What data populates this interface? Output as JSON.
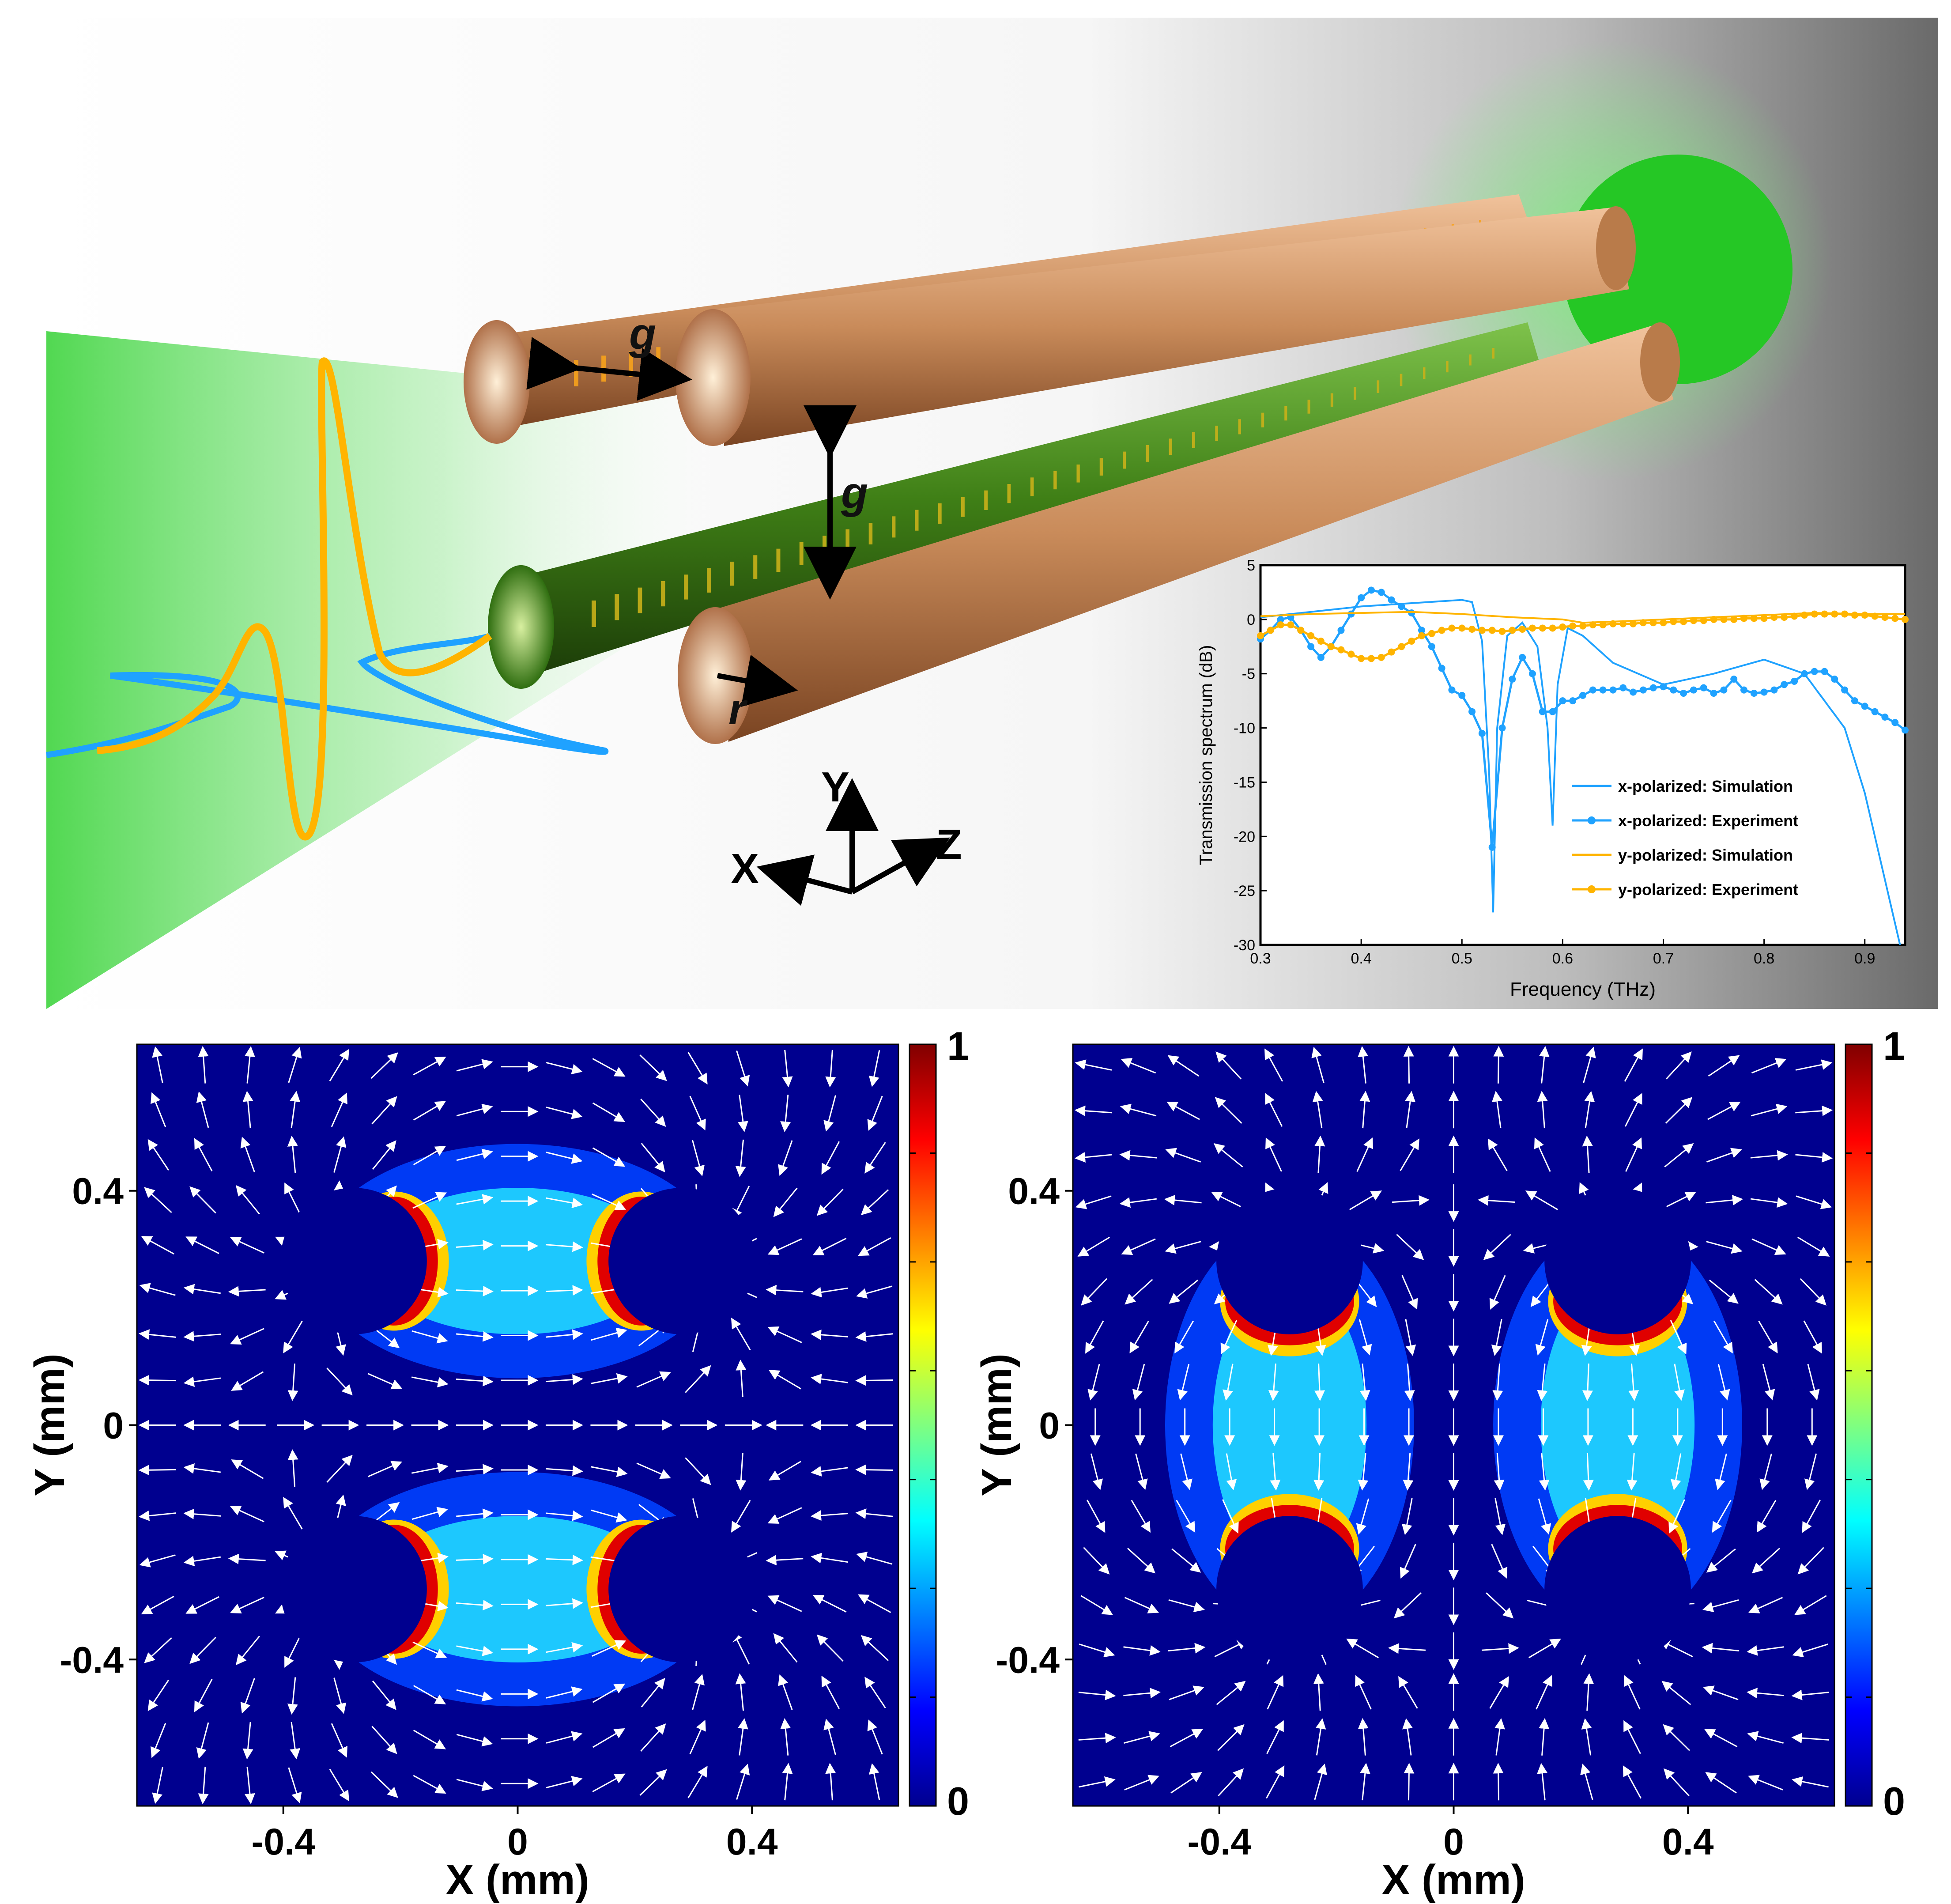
{
  "schematic": {
    "labels": {
      "gap_label_top": "g",
      "gap_label_vertical": "g",
      "radius_label": "r",
      "axis_y": "Y",
      "axis_x": "X",
      "axis_z": "Z"
    },
    "colors": {
      "copper": "#c98b5a",
      "green_wire": "#3f7f16",
      "beam": "#3cd63c",
      "pulse_orange": "#ffb400",
      "pulse_blue": "#1fa2ff"
    }
  },
  "chart_data": [
    {
      "type": "line",
      "title": "",
      "xlabel": "Frequency (THz)",
      "ylabel": "Transmission spectrum (dB)",
      "xlim": [
        0.3,
        0.94
      ],
      "ylim": [
        -30,
        5
      ],
      "xticks": [
        "0.3",
        "0.4",
        "0.5",
        "0.6",
        "0.7",
        "0.8",
        "0.9"
      ],
      "yticks": [
        "5",
        "0",
        "-5",
        "-10",
        "-15",
        "-20",
        "-25",
        "-30"
      ],
      "grid": false,
      "legend_position": "lower-right",
      "series": [
        {
          "name": "x-polarized: Simulation",
          "color": "#1fa2ff",
          "marker": false,
          "x": [
            0.3,
            0.35,
            0.4,
            0.45,
            0.5,
            0.51,
            0.52,
            0.527,
            0.531,
            0.535,
            0.545,
            0.56,
            0.575,
            0.585,
            0.59,
            0.595,
            0.605,
            0.62,
            0.65,
            0.7,
            0.75,
            0.8,
            0.84,
            0.88,
            0.9,
            0.92,
            0.935
          ],
          "y": [
            0.2,
            0.7,
            1.2,
            1.5,
            1.8,
            1.6,
            -2,
            -14,
            -27,
            -10,
            -1.5,
            -0.3,
            -2.5,
            -10,
            -19,
            -6,
            -0.8,
            -1.5,
            -4,
            -6,
            -5,
            -3.7,
            -5,
            -10,
            -16,
            -24,
            -30
          ]
        },
        {
          "name": "x-polarized: Experiment",
          "color": "#1fa2ff",
          "marker": true,
          "x": [
            0.3,
            0.31,
            0.32,
            0.33,
            0.34,
            0.35,
            0.36,
            0.37,
            0.38,
            0.39,
            0.4,
            0.41,
            0.42,
            0.43,
            0.44,
            0.45,
            0.46,
            0.47,
            0.48,
            0.49,
            0.5,
            0.51,
            0.52,
            0.53,
            0.54,
            0.55,
            0.56,
            0.57,
            0.58,
            0.59,
            0.6,
            0.61,
            0.62,
            0.63,
            0.64,
            0.65,
            0.66,
            0.67,
            0.68,
            0.69,
            0.7,
            0.71,
            0.72,
            0.73,
            0.74,
            0.75,
            0.76,
            0.77,
            0.78,
            0.79,
            0.8,
            0.81,
            0.82,
            0.83,
            0.84,
            0.85,
            0.86,
            0.87,
            0.88,
            0.89,
            0.9,
            0.91,
            0.92,
            0.93,
            0.94
          ],
          "y": [
            -1.8,
            -1,
            0,
            0.2,
            -1,
            -2.5,
            -3.5,
            -2.5,
            -1,
            0.5,
            2,
            2.7,
            2.5,
            1.8,
            1.2,
            0.6,
            -1,
            -2.5,
            -4.5,
            -6.5,
            -7,
            -8.5,
            -10.5,
            -21,
            -10,
            -5.5,
            -3.5,
            -5,
            -8.5,
            -8.5,
            -7.5,
            -7.5,
            -7,
            -6.5,
            -6.5,
            -6.5,
            -6.3,
            -6.7,
            -6.5,
            -6.3,
            -6.2,
            -6.5,
            -6.8,
            -6.5,
            -6.3,
            -6.8,
            -6.5,
            -5.5,
            -6.5,
            -6.8,
            -6.7,
            -6.5,
            -6,
            -5.7,
            -5,
            -4.8,
            -4.8,
            -5.5,
            -6.5,
            -7.5,
            -8,
            -8.5,
            -9,
            -9.5,
            -10.2
          ]
        },
        {
          "name": "y-polarized: Simulation",
          "color": "#ffb400",
          "marker": false,
          "x": [
            0.3,
            0.35,
            0.4,
            0.45,
            0.5,
            0.55,
            0.6,
            0.62,
            0.65,
            0.7,
            0.75,
            0.8,
            0.85,
            0.9,
            0.94
          ],
          "y": [
            0.3,
            0.5,
            0.6,
            0.7,
            0.5,
            0.2,
            0,
            -0.3,
            -0.2,
            0,
            0.2,
            0.4,
            0.6,
            0.5,
            0.5
          ]
        },
        {
          "name": "y-polarized: Experiment",
          "color": "#ffb400",
          "marker": true,
          "x": [
            0.3,
            0.31,
            0.32,
            0.33,
            0.34,
            0.35,
            0.36,
            0.37,
            0.38,
            0.39,
            0.4,
            0.41,
            0.42,
            0.43,
            0.44,
            0.45,
            0.46,
            0.47,
            0.48,
            0.49,
            0.5,
            0.51,
            0.52,
            0.53,
            0.54,
            0.55,
            0.56,
            0.57,
            0.58,
            0.59,
            0.6,
            0.61,
            0.62,
            0.63,
            0.64,
            0.65,
            0.66,
            0.67,
            0.68,
            0.69,
            0.7,
            0.71,
            0.72,
            0.73,
            0.74,
            0.75,
            0.76,
            0.77,
            0.78,
            0.79,
            0.8,
            0.81,
            0.82,
            0.83,
            0.84,
            0.85,
            0.86,
            0.87,
            0.88,
            0.89,
            0.9,
            0.91,
            0.92,
            0.93,
            0.94
          ],
          "y": [
            -1.5,
            -1,
            -0.5,
            -0.5,
            -1,
            -1.5,
            -2,
            -2.5,
            -2.8,
            -3.2,
            -3.6,
            -3.6,
            -3.5,
            -3,
            -2.5,
            -2,
            -1.5,
            -1.3,
            -1,
            -0.8,
            -0.8,
            -0.9,
            -1,
            -1,
            -1.1,
            -1,
            -0.9,
            -0.8,
            -0.8,
            -0.8,
            -0.7,
            -0.6,
            -0.6,
            -0.5,
            -0.5,
            -0.4,
            -0.4,
            -0.4,
            -0.3,
            -0.3,
            -0.3,
            -0.2,
            -0.2,
            -0.1,
            -0.1,
            0,
            0,
            0,
            0.1,
            0.1,
            0.1,
            0.2,
            0.2,
            0.3,
            0.4,
            0.5,
            0.5,
            0.5,
            0.5,
            0.4,
            0.4,
            0.3,
            0.2,
            0.1,
            0
          ]
        }
      ]
    },
    {
      "type": "heatmap",
      "title": "",
      "xlabel": "X (mm)",
      "ylabel": "Y (mm)",
      "xlim": [
        -0.65,
        0.65
      ],
      "ylim": [
        -0.65,
        0.65
      ],
      "xticks": [
        "-0.4",
        "0",
        "0.4"
      ],
      "yticks": [
        "0.4",
        "0",
        "-0.4"
      ],
      "colorbar": {
        "min": "0",
        "max": "1"
      },
      "rod_centers": [
        [
          -0.28,
          0.28
        ],
        [
          0.28,
          0.28
        ],
        [
          -0.28,
          -0.28
        ],
        [
          0.28,
          -0.28
        ]
      ],
      "rod_radius": 0.125,
      "mode": "x-polarized"
    },
    {
      "type": "heatmap",
      "title": "",
      "xlabel": "X (mm)",
      "ylabel": "Y (mm)",
      "xlim": [
        -0.65,
        0.65
      ],
      "ylim": [
        -0.65,
        0.65
      ],
      "xticks": [
        "-0.4",
        "0",
        "0.4"
      ],
      "yticks": [
        "0.4",
        "0",
        "-0.4"
      ],
      "colorbar": {
        "min": "0",
        "max": "1"
      },
      "rod_centers": [
        [
          -0.28,
          0.28
        ],
        [
          0.28,
          0.28
        ],
        [
          -0.28,
          -0.28
        ],
        [
          0.28,
          -0.28
        ]
      ],
      "rod_radius": 0.125,
      "mode": "y-polarized"
    }
  ]
}
